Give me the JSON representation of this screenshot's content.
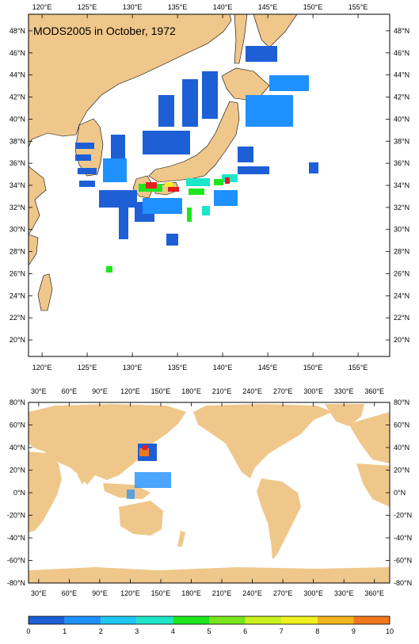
{
  "top_map": {
    "title": "MODS2005 in October, 1972",
    "top_x_labels": [
      "120°E",
      "125°E",
      "130°E",
      "135°E",
      "140°E",
      "145°E",
      "150°E",
      "155°E"
    ],
    "bottom_x_labels": [
      "120°E",
      "125°E",
      "130°E",
      "135°E",
      "140°E",
      "145°E",
      "150°E",
      "155°E"
    ],
    "left_y_labels": [
      "48°N",
      "46°N",
      "44°N",
      "42°N",
      "40°N",
      "38°N",
      "36°N",
      "34°N",
      "32°N",
      "30°N",
      "28°N",
      "26°N",
      "24°N",
      "22°N",
      "20°N"
    ],
    "right_y_labels": [
      "48°N",
      "46°N",
      "44°N",
      "42°N",
      "40°N",
      "38°N",
      "36°N",
      "34°N",
      "32°N",
      "30°N",
      "28°N",
      "26°N",
      "24°N",
      "22°N",
      "20°N"
    ]
  },
  "bottom_map": {
    "top_x_labels": [
      "30°E",
      "60°E",
      "90°E",
      "120°E",
      "150°E",
      "180°E",
      "210°E",
      "240°E",
      "270°E",
      "300°E",
      "330°E",
      "360°E"
    ],
    "bottom_x_labels": [
      "30°E",
      "60°E",
      "90°E",
      "120°E",
      "150°E",
      "180°E",
      "210°E",
      "240°E",
      "270°E",
      "300°E",
      "330°E",
      "360°E"
    ],
    "left_y_labels": [
      "80°N",
      "60°N",
      "40°N",
      "20°N",
      "0°N",
      "-20°N",
      "-40°N",
      "-60°N",
      "-80°N"
    ],
    "right_y_labels": [
      "80°N",
      "60°N",
      "40°N",
      "20°N",
      "0°N",
      "-20°N",
      "-40°N",
      "-60°N",
      "-80°N"
    ]
  },
  "colorbar": {
    "labels": [
      "0",
      "1",
      "2",
      "3",
      "4",
      "5",
      "6",
      "7",
      "8",
      "9",
      "10"
    ],
    "colors": [
      "#1e5fd6",
      "#1e90ff",
      "#1ec8f0",
      "#1ee6c8",
      "#1ee61e",
      "#78e61e",
      "#c8f01e",
      "#f0f01e",
      "#f0b41e",
      "#f0781e",
      "#e61e1e"
    ]
  },
  "colors": {
    "land": "#f0c78a",
    "ocean": "#ffffff"
  }
}
